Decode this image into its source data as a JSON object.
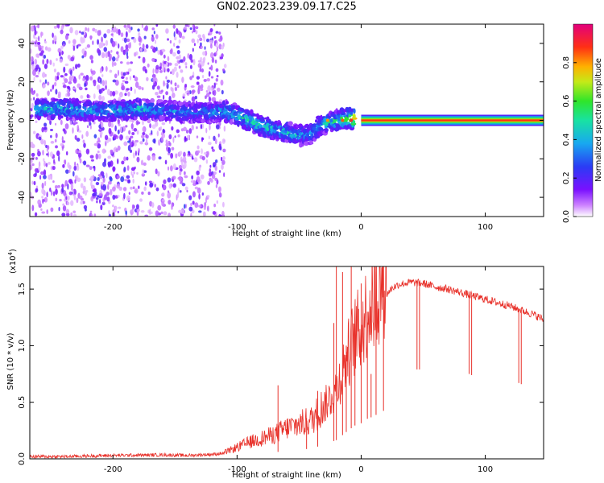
{
  "title": "GN02.2023.239.09.17.C25",
  "colors": {
    "snr_line": "#e8312a",
    "bg_dot": "#c99cf2",
    "colorbar": [
      "#9a00ff",
      "#3a1cf0",
      "#1f90f6",
      "#00e0c4",
      "#2de02d",
      "#e8ea1f",
      "#ff8a00",
      "#ff2810",
      "#e0007a"
    ]
  },
  "chart_data": [
    {
      "type": "heatmap",
      "title": "GN02.2023.239.09.17.C25",
      "xlabel": "Height of straight line (km)",
      "ylabel": "Frequency (Hz)",
      "xlim": [
        -267,
        147
      ],
      "ylim": [
        -50,
        50
      ],
      "x_ticks": [
        -200,
        -100,
        0,
        100
      ],
      "y_ticks": [
        -40,
        -20,
        0,
        20,
        40
      ],
      "x_tick_labels": [
        "-200",
        "-100",
        "0",
        "100"
      ],
      "y_tick_labels": [
        "-40",
        "-20",
        "0",
        "20",
        "40"
      ],
      "colorbar": {
        "label": "Normalized spectral amplitude",
        "range": [
          0.0,
          1.0
        ],
        "ticks": [
          0.0,
          0.2,
          0.4,
          0.6,
          0.8
        ],
        "tick_labels": [
          "0.0",
          "0.2",
          "0.4",
          "0.6",
          "0.8"
        ]
      },
      "ridge": {
        "x": [
          -262,
          -240,
          -220,
          -200,
          -180,
          -160,
          -140,
          -120,
          -110,
          -100,
          -90,
          -80,
          -70,
          -60,
          -50,
          -40,
          -35,
          -30,
          -25,
          -20,
          -10,
          0,
          20,
          60,
          100,
          147
        ],
        "freq": [
          6,
          6,
          5,
          5,
          6,
          5,
          4,
          4,
          5,
          3,
          0,
          -3,
          -5,
          -6,
          -8,
          -7,
          -4,
          -2,
          -1,
          0,
          1,
          0,
          0,
          0,
          0,
          0
        ],
        "amplitude": [
          0.4,
          0.45,
          0.4,
          0.4,
          0.45,
          0.35,
          0.35,
          0.35,
          0.45,
          0.45,
          0.5,
          0.45,
          0.45,
          0.45,
          0.4,
          0.4,
          0.45,
          0.45,
          0.5,
          0.55,
          0.6,
          1.0,
          1.0,
          1.0,
          1.0,
          1.0
        ]
      }
    },
    {
      "type": "line",
      "xlabel": "Height of straight line (km)",
      "ylabel": "SNR (10 * v/v)",
      "y_multiplier": "(x10",
      "y_multiplier_exp": "4",
      "y_multiplier_close": ")",
      "xlim": [
        -267,
        147
      ],
      "ylim": [
        0,
        17000
      ],
      "x_ticks": [
        -200,
        -100,
        0,
        100
      ],
      "x_tick_labels": [
        "-200",
        "-100",
        "0",
        "100"
      ],
      "y_ticks": [
        0,
        5000,
        10000,
        15000
      ],
      "y_tick_labels": [
        "0.0",
        "0.5",
        "1.0",
        "1.5"
      ],
      "series": [
        {
          "x": [
            -267,
            -240,
            -200,
            -160,
            -140,
            -120,
            -110,
            -100,
            -90,
            -80,
            -70,
            -60,
            -50,
            -40,
            -30,
            -20,
            -15,
            -10,
            -5,
            0,
            5,
            10,
            15,
            20,
            25,
            30,
            40,
            50,
            60,
            70,
            80,
            90,
            100,
            110,
            120,
            130,
            140,
            147
          ],
          "values": [
            200,
            200,
            300,
            350,
            300,
            400,
            500,
            900,
            1300,
            1600,
            1900,
            2400,
            2700,
            3000,
            4200,
            5500,
            7000,
            8500,
            9800,
            10500,
            11800,
            12500,
            13600,
            14500,
            15100,
            15400,
            15600,
            15500,
            15200,
            15000,
            14700,
            14400,
            14100,
            13800,
            13500,
            13100,
            12700,
            12300
          ]
        }
      ],
      "noise_spikes": [
        {
          "x": -67,
          "value": 6500
        },
        {
          "x": -44,
          "value": 3600
        },
        {
          "x": -35,
          "value": 6000
        },
        {
          "x": -22,
          "value": 12000
        },
        {
          "x": -20,
          "value": 17000
        },
        {
          "x": -15,
          "value": 16500
        },
        {
          "x": -12,
          "value": 10000
        },
        {
          "x": -8,
          "value": 17000
        },
        {
          "x": -5,
          "value": 12500
        },
        {
          "x": 0,
          "value": 15500
        },
        {
          "x": 5,
          "value": 13000
        },
        {
          "x": 8,
          "value": 7500
        },
        {
          "x": 12,
          "value": 16500
        },
        {
          "x": 18,
          "value": 14800
        }
      ],
      "dropouts": [
        {
          "x": 45,
          "value": 7900
        },
        {
          "x": 47,
          "value": 7900
        },
        {
          "x": 87,
          "value": 7500
        },
        {
          "x": 89,
          "value": 7400
        },
        {
          "x": 127,
          "value": 6700
        },
        {
          "x": 129,
          "value": 6600
        }
      ]
    }
  ]
}
